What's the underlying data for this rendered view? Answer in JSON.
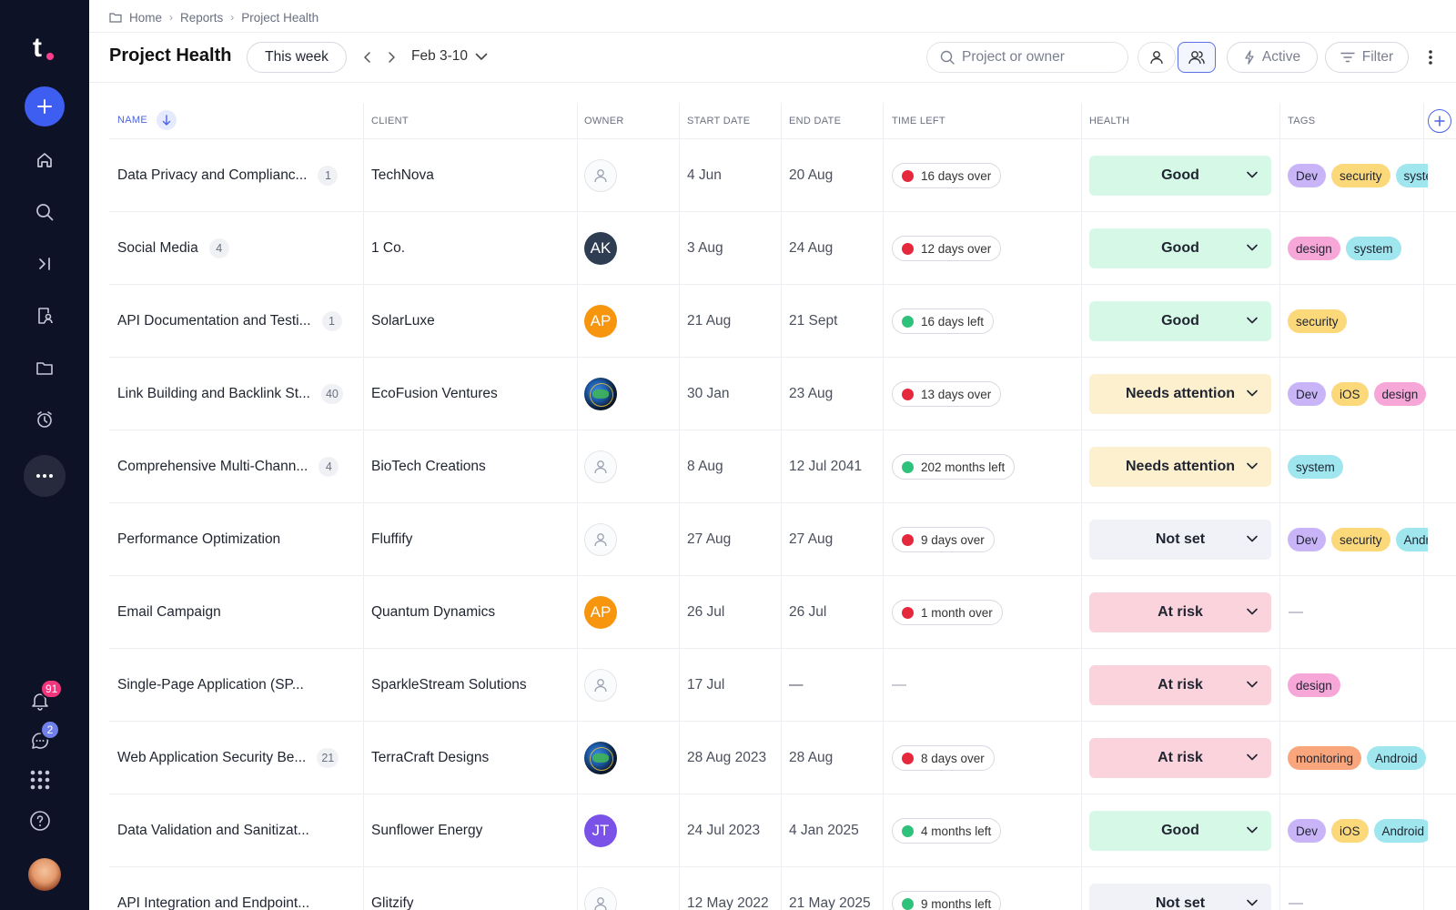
{
  "sidebar": {
    "logo_letter": "t",
    "notifications_count": "91",
    "messages_count": "2"
  },
  "breadcrumb": [
    "Home",
    "Reports",
    "Project Health"
  ],
  "header": {
    "title": "Project Health",
    "period_label": "This week",
    "date_range": "Feb 3-10",
    "search_placeholder": "Project or owner",
    "active_label": "Active",
    "filter_label": "Filter"
  },
  "columns": {
    "name": "NAME",
    "client": "CLIENT",
    "owner": "OWNER",
    "start": "START DATE",
    "end": "END DATE",
    "time_left": "TIME LEFT",
    "health": "HEALTH",
    "tags": "TAGS"
  },
  "colors": {
    "accent": "#3d5ef0",
    "sidebar_bg": "#0e1226",
    "health_good": "#d6f8e6",
    "health_attention": "#fdf0cf",
    "health_notset": "#f0f2f7",
    "health_risk": "#fbd3dc",
    "status_over": "#e5283b",
    "status_left": "#2fc27a"
  },
  "rows": [
    {
      "name": "Data Privacy and Complianc...",
      "count": "1",
      "client": "TechNova",
      "owner": {
        "type": "placeholder",
        "initials": "",
        "color": ""
      },
      "start": "4 Jun",
      "end": "20 Aug",
      "time": {
        "text": "16 days over",
        "status": "over"
      },
      "health": {
        "label": "Good",
        "kind": "good"
      },
      "tags": [
        "Dev",
        "security",
        "system"
      ]
    },
    {
      "name": "Social Media",
      "count": "4",
      "client": "1 Co.",
      "owner": {
        "type": "initials",
        "initials": "AK",
        "color": "#2e3d52"
      },
      "start": "3 Aug",
      "end": "24 Aug",
      "time": {
        "text": "12 days over",
        "status": "over"
      },
      "health": {
        "label": "Good",
        "kind": "good"
      },
      "tags": [
        "design",
        "system"
      ]
    },
    {
      "name": "API Documentation and Testi...",
      "count": "1",
      "client": "SolarLuxe",
      "owner": {
        "type": "initials",
        "initials": "AP",
        "color": "#f7950f"
      },
      "start": "21 Aug",
      "end": "21 Sept",
      "time": {
        "text": "16 days left",
        "status": "left"
      },
      "health": {
        "label": "Good",
        "kind": "good"
      },
      "tags": [
        "security"
      ]
    },
    {
      "name": "Link Building and Backlink St...",
      "count": "40",
      "client": "EcoFusion Ventures",
      "owner": {
        "type": "globe",
        "initials": "",
        "color": ""
      },
      "start": "30 Jan",
      "end": "23 Aug",
      "time": {
        "text": "13 days over",
        "status": "over"
      },
      "health": {
        "label": "Needs attention",
        "kind": "attention"
      },
      "tags": [
        "Dev",
        "iOS",
        "design"
      ]
    },
    {
      "name": "Comprehensive Multi-Chann...",
      "count": "4",
      "client": "BioTech Creations",
      "owner": {
        "type": "placeholder",
        "initials": "",
        "color": ""
      },
      "start": "8 Aug",
      "end": "12 Jul 2041",
      "time": {
        "text": "202 months left",
        "status": "left"
      },
      "health": {
        "label": "Needs attention",
        "kind": "attention"
      },
      "tags": [
        "system"
      ]
    },
    {
      "name": "Performance Optimization",
      "count": "",
      "client": "Fluffify",
      "owner": {
        "type": "placeholder",
        "initials": "",
        "color": ""
      },
      "start": "27 Aug",
      "end": "27 Aug",
      "time": {
        "text": "9 days over",
        "status": "over"
      },
      "health": {
        "label": "Not set",
        "kind": "notset"
      },
      "tags": [
        "Dev",
        "security",
        "Android"
      ]
    },
    {
      "name": "Email Campaign",
      "count": "",
      "client": "Quantum Dynamics",
      "owner": {
        "type": "initials",
        "initials": "AP",
        "color": "#f7950f"
      },
      "start": "26 Jul",
      "end": "26 Jul",
      "time": {
        "text": "1 month over",
        "status": "over"
      },
      "health": {
        "label": "At risk",
        "kind": "risk"
      },
      "tags": []
    },
    {
      "name": "Single-Page Application (SP...",
      "count": "",
      "client": "SparkleStream Solutions",
      "owner": {
        "type": "placeholder",
        "initials": "",
        "color": ""
      },
      "start": "17 Jul",
      "end": "—",
      "time": {
        "text": "—",
        "status": "none"
      },
      "health": {
        "label": "At risk",
        "kind": "risk"
      },
      "tags": [
        "design"
      ]
    },
    {
      "name": "Web Application Security Be...",
      "count": "21",
      "client": "TerraCraft Designs",
      "owner": {
        "type": "globe",
        "initials": "",
        "color": ""
      },
      "start": "28 Aug 2023",
      "end": "28 Aug",
      "time": {
        "text": "8 days over",
        "status": "over"
      },
      "health": {
        "label": "At risk",
        "kind": "risk"
      },
      "tags": [
        "monitoring",
        "Android"
      ]
    },
    {
      "name": "Data Validation and Sanitizat...",
      "count": "",
      "client": "Sunflower Energy",
      "owner": {
        "type": "initials",
        "initials": "JT",
        "color": "#7b52e8"
      },
      "start": "24 Jul 2023",
      "end": "4 Jan 2025",
      "time": {
        "text": "4 months left",
        "status": "left"
      },
      "health": {
        "label": "Good",
        "kind": "good"
      },
      "tags": [
        "Dev",
        "iOS",
        "Android"
      ]
    },
    {
      "name": "API Integration and Endpoint...",
      "count": "",
      "client": "Glitzify",
      "owner": {
        "type": "placeholder",
        "initials": "",
        "color": ""
      },
      "start": "12 May 2022",
      "end": "21 May 2025",
      "time": {
        "text": "9 months left",
        "status": "left"
      },
      "health": {
        "label": "Not set",
        "kind": "notset"
      },
      "tags": []
    }
  ],
  "tag_colors": {
    "Dev": "#c8b4f7",
    "security": "#fbd87a",
    "system": "#9fe6ef",
    "design": "#f7a6d8",
    "iOS": "#fbd87a",
    "Android": "#9fe6ef",
    "monitoring": "#f9a67c"
  }
}
